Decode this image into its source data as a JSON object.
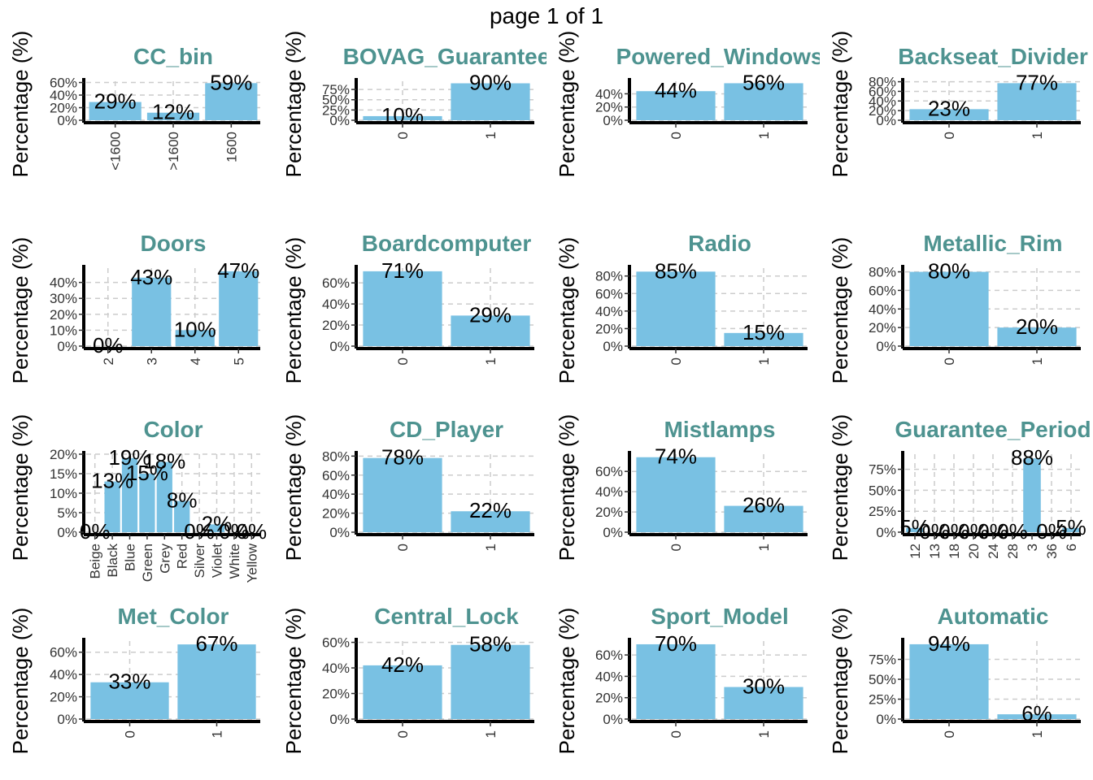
{
  "page_title": "page 1 of 1",
  "bar_color": "#79c1e3",
  "title_color": "#4e9390",
  "ylabel": "Percentage (%)",
  "chart_data": [
    {
      "type": "bar",
      "title": "CC_bin",
      "ylabel": "Percentage (%)",
      "categories": [
        "<1600",
        ">1600",
        "1600"
      ],
      "values": [
        29,
        12,
        59
      ],
      "value_labels": [
        "29%",
        "12%",
        "59%"
      ],
      "yticks": [
        "0%",
        "20%",
        "40%",
        "60%"
      ],
      "ylim": [
        0,
        62
      ]
    },
    {
      "type": "bar",
      "title": "BOVAG_Guarantee",
      "ylabel": "Percentage (%)",
      "categories": [
        "0",
        "1"
      ],
      "values": [
        10,
        90
      ],
      "value_labels": [
        "10%",
        "90%"
      ],
      "yticks": [
        "0%",
        "25%",
        "50%",
        "75%"
      ],
      "ylim": [
        0,
        95
      ]
    },
    {
      "type": "bar",
      "title": "Powered_Windows",
      "ylabel": "Percentage (%)",
      "categories": [
        "0",
        "1"
      ],
      "values": [
        44,
        56
      ],
      "value_labels": [
        "44%",
        "56%"
      ],
      "yticks": [
        "0%",
        "20%",
        "40%"
      ],
      "ylim": [
        0,
        59
      ]
    },
    {
      "type": "bar",
      "title": "Backseat_Divider",
      "ylabel": "Percentage (%)",
      "categories": [
        "0",
        "1"
      ],
      "values": [
        23,
        77
      ],
      "value_labels": [
        "23%",
        "77%"
      ],
      "yticks": [
        "0%",
        "20%",
        "40%",
        "60%",
        "80%"
      ],
      "ylim": [
        0,
        81
      ]
    },
    {
      "type": "bar",
      "title": "Doors",
      "ylabel": "Percentage (%)",
      "categories": [
        "2",
        "3",
        "4",
        "5"
      ],
      "values": [
        0,
        43,
        10,
        47
      ],
      "value_labels": [
        "0%",
        "43%",
        "10%",
        "47%"
      ],
      "yticks": [
        "0%",
        "10%",
        "20%",
        "30%",
        "40%"
      ],
      "ylim": [
        0,
        49
      ]
    },
    {
      "type": "bar",
      "title": "Boardcomputer",
      "ylabel": "Percentage (%)",
      "categories": [
        "0",
        "1"
      ],
      "values": [
        71,
        29
      ],
      "value_labels": [
        "71%",
        "29%"
      ],
      "yticks": [
        "0%",
        "20%",
        "40%",
        "60%"
      ],
      "ylim": [
        0,
        74
      ]
    },
    {
      "type": "bar",
      "title": "Radio",
      "ylabel": "Percentage (%)",
      "categories": [
        "0",
        "1"
      ],
      "values": [
        85,
        15
      ],
      "value_labels": [
        "85%",
        "15%"
      ],
      "yticks": [
        "0%",
        "20%",
        "40%",
        "60%",
        "80%"
      ],
      "ylim": [
        0,
        89
      ]
    },
    {
      "type": "bar",
      "title": "Metallic_Rim",
      "ylabel": "Percentage (%)",
      "categories": [
        "0",
        "1"
      ],
      "values": [
        80,
        20
      ],
      "value_labels": [
        "80%",
        "20%"
      ],
      "yticks": [
        "0%",
        "20%",
        "40%",
        "60%",
        "80%"
      ],
      "ylim": [
        0,
        84
      ]
    },
    {
      "type": "bar",
      "title": "Color",
      "ylabel": "Percentage (%)",
      "categories": [
        "Beige",
        "Black",
        "Blue",
        "Green",
        "Grey",
        "Red",
        "Silver",
        "Violet",
        "White",
        "Yellow"
      ],
      "values": [
        0,
        13,
        19,
        15,
        18,
        8,
        0,
        2,
        0,
        0
      ],
      "value_labels": [
        "0%",
        "13%",
        "19%",
        "15%",
        "18%",
        "8%",
        "0%",
        "2%",
        "0%",
        "0%"
      ],
      "yticks": [
        "0%",
        "5%",
        "10%",
        "15%",
        "20%"
      ],
      "ylim": [
        0,
        20
      ]
    },
    {
      "type": "bar",
      "title": "CD_Player",
      "ylabel": "Percentage (%)",
      "categories": [
        "0",
        "1"
      ],
      "values": [
        78,
        22
      ],
      "value_labels": [
        "78%",
        "22%"
      ],
      "yticks": [
        "0%",
        "20%",
        "40%",
        "60%",
        "80%"
      ],
      "ylim": [
        0,
        82
      ]
    },
    {
      "type": "bar",
      "title": "Mistlamps",
      "ylabel": "Percentage (%)",
      "categories": [
        "0",
        "1"
      ],
      "values": [
        74,
        26
      ],
      "value_labels": [
        "74%",
        "26%"
      ],
      "yticks": [
        "0%",
        "20%",
        "40%",
        "60%"
      ],
      "ylim": [
        0,
        77
      ]
    },
    {
      "type": "bar",
      "title": "Guarantee_Period",
      "ylabel": "Percentage (%)",
      "categories": [
        "12",
        "13",
        "18",
        "20",
        "24",
        "28",
        "3",
        "36",
        "6"
      ],
      "values": [
        5,
        0,
        0,
        0,
        0,
        0,
        88,
        0,
        5
      ],
      "value_labels": [
        "5%",
        "0%",
        "0%",
        "0%",
        "0%",
        "0%",
        "88%",
        "0%",
        "5%"
      ],
      "yticks": [
        "0%",
        "25%",
        "50%",
        "75%"
      ],
      "ylim": [
        0,
        93
      ]
    },
    {
      "type": "bar",
      "title": "Met_Color",
      "ylabel": "Percentage (%)",
      "categories": [
        "0",
        "1"
      ],
      "values": [
        33,
        67
      ],
      "value_labels": [
        "33%",
        "67%"
      ],
      "yticks": [
        "0%",
        "20%",
        "40%",
        "60%"
      ],
      "ylim": [
        0,
        70
      ]
    },
    {
      "type": "bar",
      "title": "Central_Lock",
      "ylabel": "Percentage (%)",
      "categories": [
        "0",
        "1"
      ],
      "values": [
        42,
        58
      ],
      "value_labels": [
        "42%",
        "58%"
      ],
      "yticks": [
        "0%",
        "20%",
        "40%",
        "60%"
      ],
      "ylim": [
        0,
        61
      ]
    },
    {
      "type": "bar",
      "title": "Sport_Model",
      "ylabel": "Percentage (%)",
      "categories": [
        "0",
        "1"
      ],
      "values": [
        70,
        30
      ],
      "value_labels": [
        "70%",
        "30%"
      ],
      "yticks": [
        "0%",
        "20%",
        "40%",
        "60%"
      ],
      "ylim": [
        0,
        73
      ]
    },
    {
      "type": "bar",
      "title": "Automatic",
      "ylabel": "Percentage (%)",
      "categories": [
        "0",
        "1"
      ],
      "values": [
        94,
        6
      ],
      "value_labels": [
        "94%",
        "6%"
      ],
      "yticks": [
        "0%",
        "25%",
        "50%",
        "75%"
      ],
      "ylim": [
        0,
        98
      ]
    }
  ]
}
